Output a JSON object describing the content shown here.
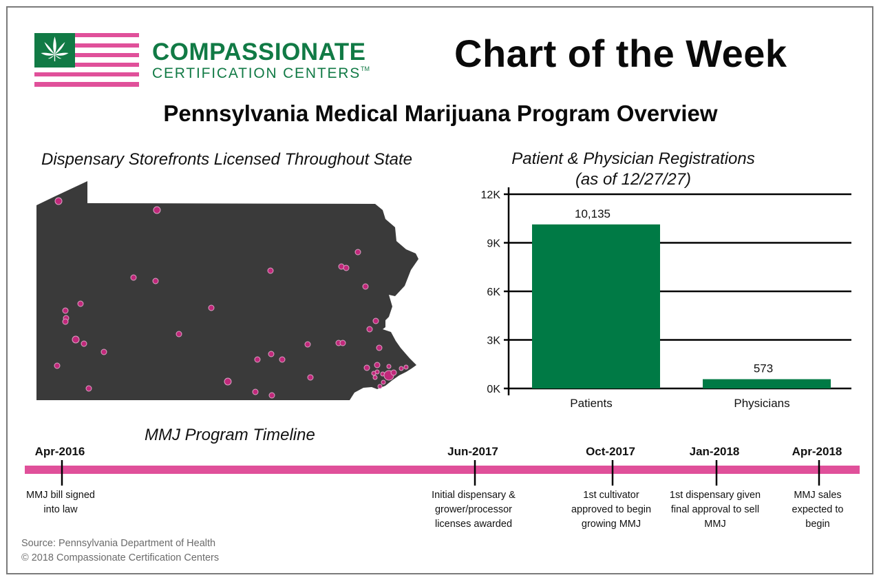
{
  "brand": {
    "name": "COMPASSIONATE",
    "subtitle": "CERTIFICATION CENTERS",
    "trademark": "TM",
    "logo_icon": "cannabis-leaf-flag-icon",
    "colors": {
      "green": "#117a45",
      "pink": "#e0509a",
      "map": "#3a3a3a",
      "dot": "#c0287a"
    }
  },
  "header": {
    "badge": "Chart of the Week"
  },
  "title": "Pennsylvania Medical Marijuana Program Overview",
  "map": {
    "title": "Dispensary Storefronts Licensed Throughout State",
    "region": "Pennsylvania",
    "dispensary_count_shown": 52
  },
  "chart_data": {
    "type": "bar",
    "title": "Patient & Physician Registrations",
    "subtitle": "(as of 12/27/27)",
    "categories": [
      "Patients",
      "Physicians"
    ],
    "values": [
      10135,
      573
    ],
    "value_labels": [
      "10,135",
      "573"
    ],
    "xlabel": "",
    "ylabel": "",
    "ylim": [
      0,
      12000
    ],
    "yticks": [
      0,
      3000,
      6000,
      9000,
      12000
    ],
    "ytick_labels": [
      "0K",
      "3K",
      "6K",
      "9K",
      "12K"
    ],
    "grid": true,
    "bar_color": "#007a45"
  },
  "timeline": {
    "title": "MMJ Program Timeline",
    "events": [
      {
        "date": "Apr-2016",
        "description": [
          "MMJ bill signed",
          "into law"
        ]
      },
      {
        "date": "Jun-2017",
        "description": [
          "Initial dispensary &",
          "grower/processor",
          "licenses awarded"
        ]
      },
      {
        "date": "Oct-2017",
        "description": [
          "1st cultivator",
          "approved to begin",
          "growing MMJ"
        ]
      },
      {
        "date": "Jan-2018",
        "description": [
          "1st dispensary given",
          "final approval to sell",
          "MMJ"
        ]
      },
      {
        "date": "Apr-2018",
        "description": [
          "MMJ sales",
          "expected to",
          "begin"
        ]
      }
    ]
  },
  "footer": {
    "source": "Source: Pennsylvania Department of Health",
    "copyright": "© 2018 Compassionate Certification Centers"
  }
}
